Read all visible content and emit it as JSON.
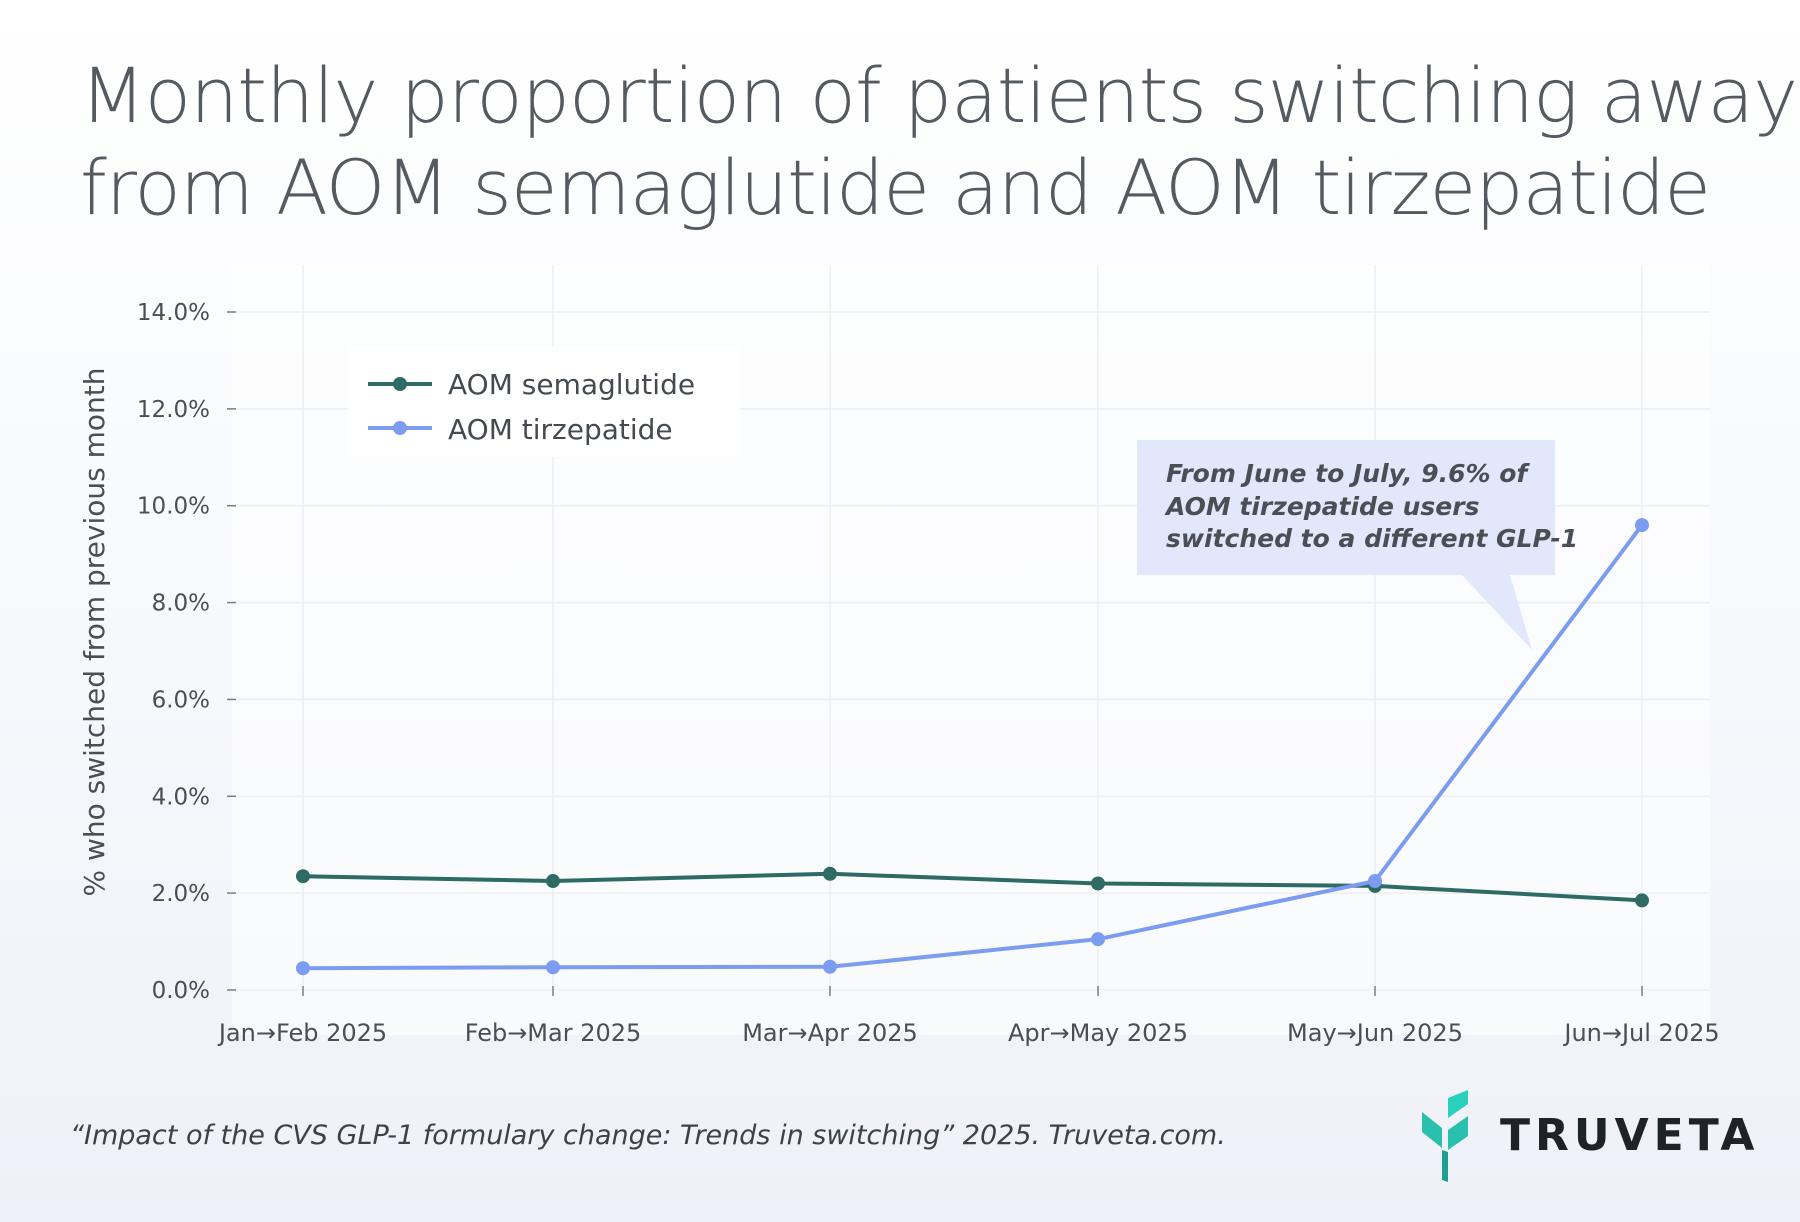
{
  "title_lines": [
    "Monthly proportion of patients switching away",
    "from AOM semaglutide and AOM tirzepatide"
  ],
  "chart_data": {
    "type": "line",
    "ylabel": "% who switched from previous month",
    "xlabel": "",
    "categories": [
      "Jan→Feb 2025",
      "Feb→Mar 2025",
      "Mar→Apr 2025",
      "Apr→May 2025",
      "May→Jun 2025",
      "Jun→Jul 2025"
    ],
    "y_ticks": [
      "0.0%",
      "2.0%",
      "4.0%",
      "6.0%",
      "8.0%",
      "10.0%",
      "12.0%",
      "14.0%"
    ],
    "ylim": [
      0,
      14
    ],
    "grid": true,
    "legend_position": "top-left",
    "series": [
      {
        "name": "AOM semaglutide",
        "color": "#2e6b64",
        "values": [
          2.35,
          2.25,
          2.4,
          2.2,
          2.15,
          1.85
        ]
      },
      {
        "name": "AOM tirzepatide",
        "color": "#7b9cf0",
        "values": [
          0.45,
          0.47,
          0.48,
          1.05,
          2.25,
          9.6
        ]
      }
    ],
    "annotation": {
      "lines": [
        "From June to July, 9.6% of",
        "AOM tirzepatide users",
        "switched to a different GLP-1"
      ],
      "fill": "#e2e8fc"
    }
  },
  "source": "“Impact of the CVS GLP-1 formulary change: Trends in switching” 2025. Truveta.com.",
  "logo": {
    "text": "TRUVETA",
    "colors": [
      "#2bbfae",
      "#1f9e92",
      "#2ad0bd"
    ]
  }
}
